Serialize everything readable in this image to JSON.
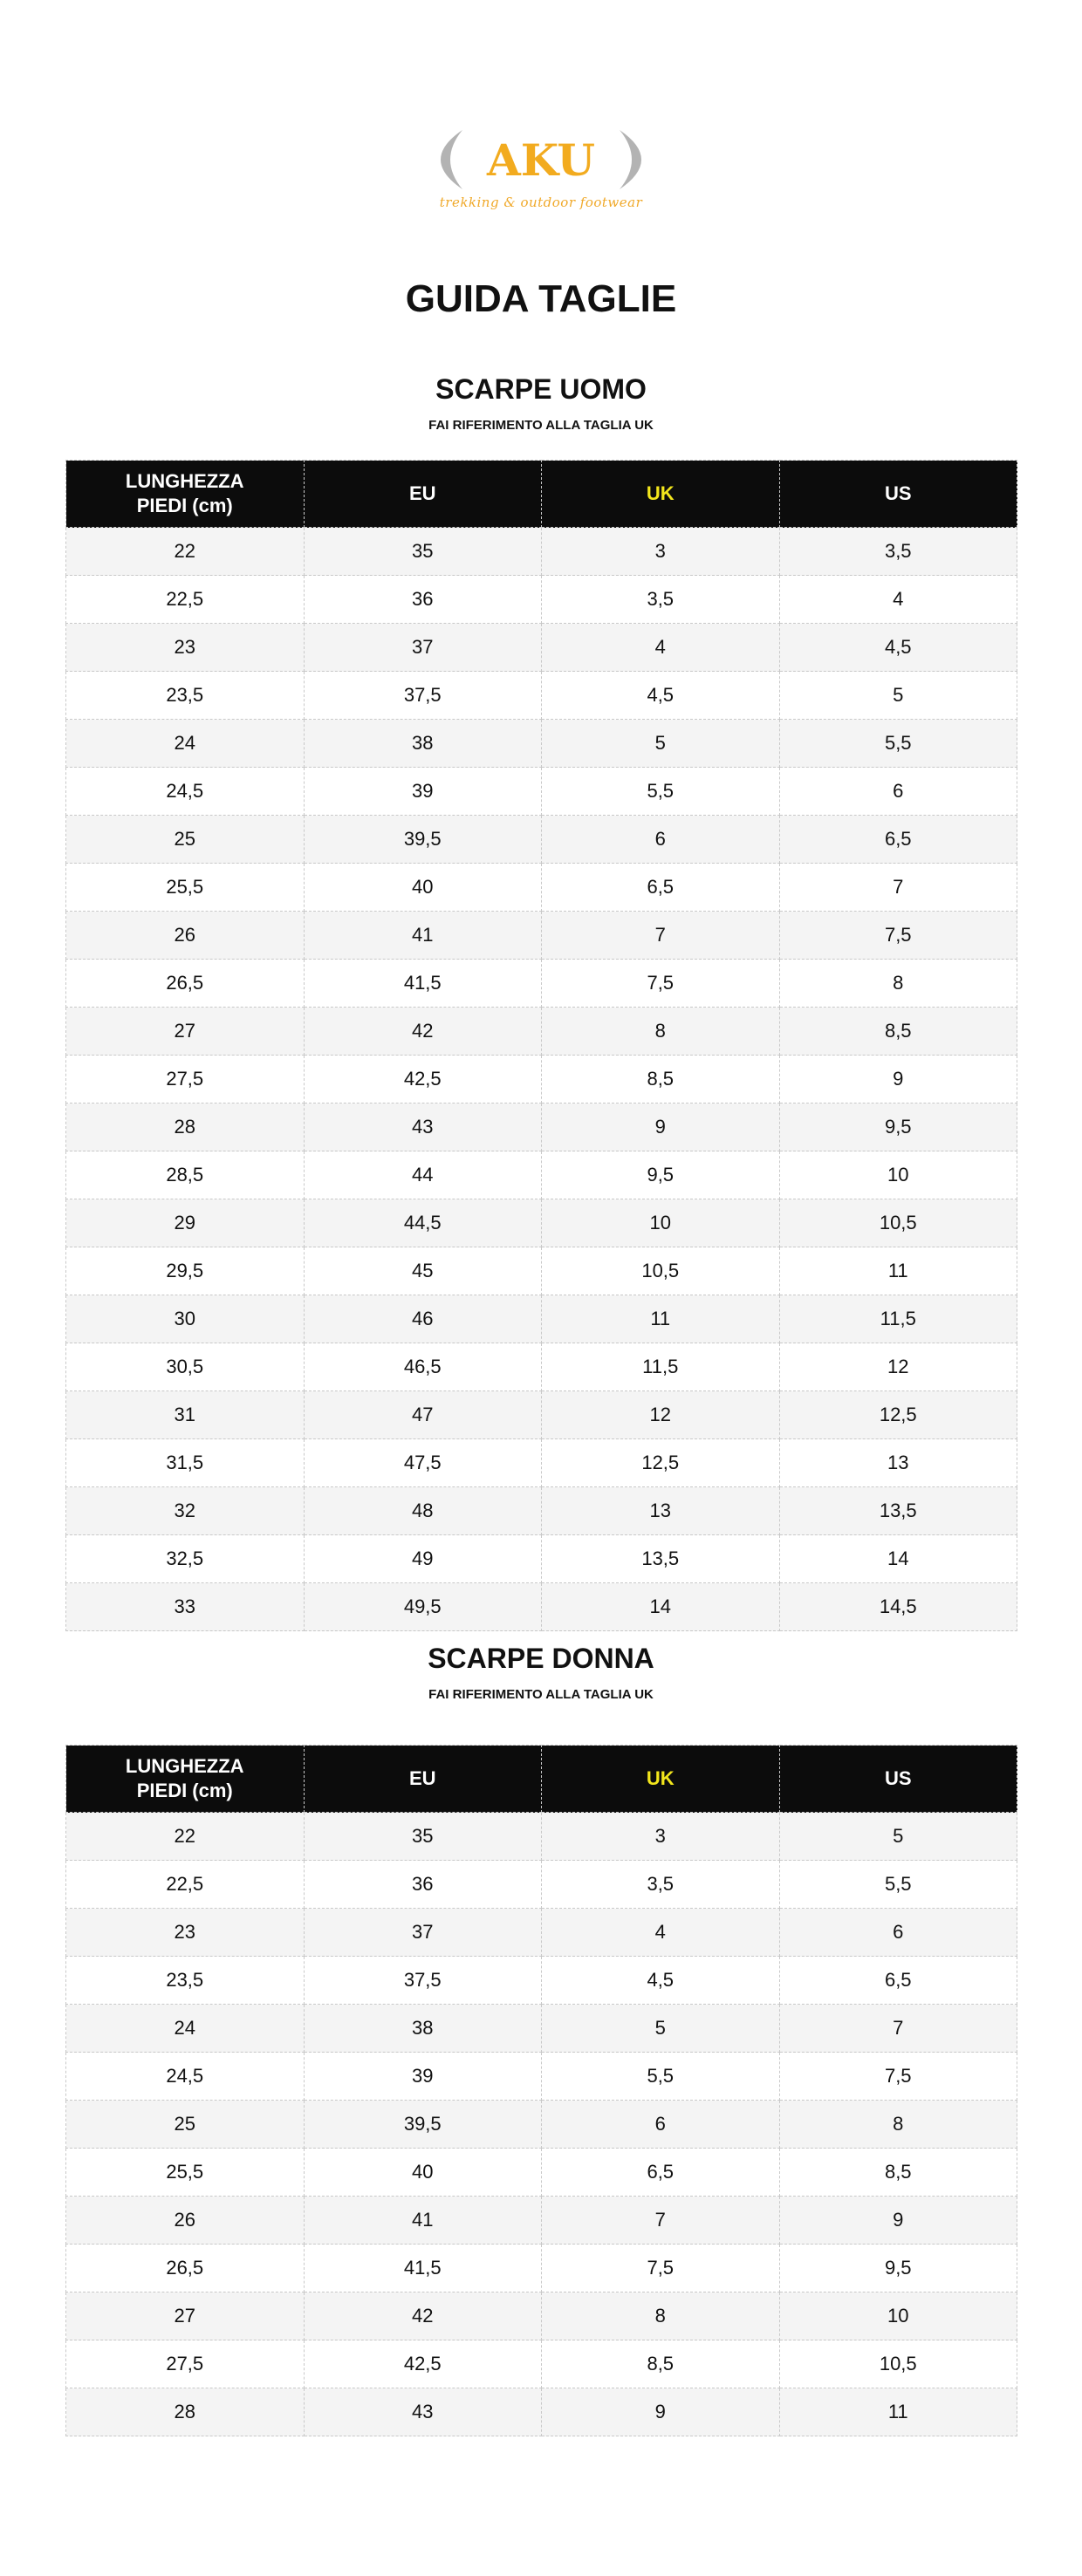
{
  "logo": {
    "brand": "AKU",
    "tagline": "trekking & outdoor footwear",
    "colors": {
      "brand": "#f2ab1f",
      "bracket": "#b3b3b3"
    }
  },
  "title": "GUIDA TAGLIE",
  "headers": [
    "LUNGHEZZA PIEDI (cm)",
    "EU",
    "UK",
    "US"
  ],
  "highlight_color": "#f3e61c",
  "men": {
    "title": "SCARPE UOMO",
    "subtitle": "FAI RIFERIMENTO ALLA TAGLIA UK",
    "rows": [
      [
        "22",
        "35",
        "3",
        "3,5"
      ],
      [
        "22,5",
        "36",
        "3,5",
        "4"
      ],
      [
        "23",
        "37",
        "4",
        "4,5"
      ],
      [
        "23,5",
        "37,5",
        "4,5",
        "5"
      ],
      [
        "24",
        "38",
        "5",
        "5,5"
      ],
      [
        "24,5",
        "39",
        "5,5",
        "6"
      ],
      [
        "25",
        "39,5",
        "6",
        "6,5"
      ],
      [
        "25,5",
        "40",
        "6,5",
        "7"
      ],
      [
        "26",
        "41",
        "7",
        "7,5"
      ],
      [
        "26,5",
        "41,5",
        "7,5",
        "8"
      ],
      [
        "27",
        "42",
        "8",
        "8,5"
      ],
      [
        "27,5",
        "42,5",
        "8,5",
        "9"
      ],
      [
        "28",
        "43",
        "9",
        "9,5"
      ],
      [
        "28,5",
        "44",
        "9,5",
        "10"
      ],
      [
        "29",
        "44,5",
        "10",
        "10,5"
      ],
      [
        "29,5",
        "45",
        "10,5",
        "11"
      ],
      [
        "30",
        "46",
        "11",
        "11,5"
      ],
      [
        "30,5",
        "46,5",
        "11,5",
        "12"
      ],
      [
        "31",
        "47",
        "12",
        "12,5"
      ],
      [
        "31,5",
        "47,5",
        "12,5",
        "13"
      ],
      [
        "32",
        "48",
        "13",
        "13,5"
      ],
      [
        "32,5",
        "49",
        "13,5",
        "14"
      ],
      [
        "33",
        "49,5",
        "14",
        "14,5"
      ]
    ]
  },
  "women": {
    "title": "SCARPE DONNA",
    "subtitle": "FAI RIFERIMENTO ALLA TAGLIA UK",
    "rows": [
      [
        "22",
        "35",
        "3",
        "5"
      ],
      [
        "22,5",
        "36",
        "3,5",
        "5,5"
      ],
      [
        "23",
        "37",
        "4",
        "6"
      ],
      [
        "23,5",
        "37,5",
        "4,5",
        "6,5"
      ],
      [
        "24",
        "38",
        "5",
        "7"
      ],
      [
        "24,5",
        "39",
        "5,5",
        "7,5"
      ],
      [
        "25",
        "39,5",
        "6",
        "8"
      ],
      [
        "25,5",
        "40",
        "6,5",
        "8,5"
      ],
      [
        "26",
        "41",
        "7",
        "9"
      ],
      [
        "26,5",
        "41,5",
        "7,5",
        "9,5"
      ],
      [
        "27",
        "42",
        "8",
        "10"
      ],
      [
        "27,5",
        "42,5",
        "8,5",
        "10,5"
      ],
      [
        "28",
        "43",
        "9",
        "11"
      ]
    ]
  }
}
